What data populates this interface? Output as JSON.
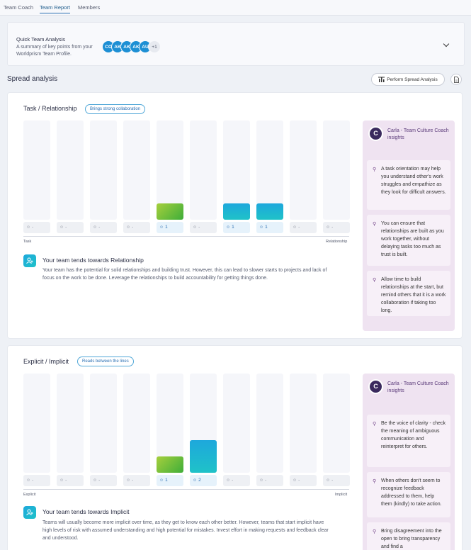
{
  "tabs": [
    {
      "label": "Team Coach"
    },
    {
      "label": "Team Report"
    },
    {
      "label": "Members"
    }
  ],
  "quick_analysis": {
    "title": "Quick Team Analysis",
    "subtitle": "A summary of key points from your Worldprism Team Profile.",
    "avatars": [
      "CO",
      "AK",
      "AK",
      "AK",
      "AU"
    ],
    "more": "+1"
  },
  "spread": {
    "title": "Spread analysis",
    "perform_label": "Perform Spread Analysis"
  },
  "sections": [
    {
      "title": "Task / Relationship",
      "badge": "Brings strong collaboration",
      "columns": [
        {
          "count": "-",
          "value": 0,
          "kind": "none"
        },
        {
          "count": "-",
          "value": 0,
          "kind": "none"
        },
        {
          "count": "-",
          "value": 0,
          "kind": "none"
        },
        {
          "count": "-",
          "value": 0,
          "kind": "none"
        },
        {
          "count": "1",
          "value": 1,
          "kind": "green"
        },
        {
          "count": "-",
          "value": 0,
          "kind": "none"
        },
        {
          "count": "1",
          "value": 1,
          "kind": "blue"
        },
        {
          "count": "1",
          "value": 1,
          "kind": "blue"
        },
        {
          "count": "-",
          "value": 0,
          "kind": "none"
        },
        {
          "count": "-",
          "value": 0,
          "kind": "none"
        }
      ],
      "left_label": "Task",
      "right_label": "Relationship",
      "tendency_title": "Your team tends towards Relationship",
      "tendency_text": "Your team has the potential for solid relationships and building trust. However, this can lead to slower starts to projects and lack of focus on the work to be done. Leverage the relationships to build accountability for getting things done.",
      "coach_name": "Carla - Team Culture Coach insights",
      "coach_initial": "C",
      "tips": [
        "A task orientation may help you understand other's work struggles and empathize as they look for difficult answers.",
        "You can ensure that relationships are built as you work together, without delaying tasks too much as trust is built.",
        "Allow time to build relationships at the start, but remind others that it is a work collaboration if taking too long."
      ]
    },
    {
      "title": "Explicit / Implicit",
      "badge": "Reads between the lines",
      "columns": [
        {
          "count": "-",
          "value": 0,
          "kind": "none"
        },
        {
          "count": "-",
          "value": 0,
          "kind": "none"
        },
        {
          "count": "-",
          "value": 0,
          "kind": "none"
        },
        {
          "count": "-",
          "value": 0,
          "kind": "none"
        },
        {
          "count": "1",
          "value": 1,
          "kind": "green"
        },
        {
          "count": "2",
          "value": 2,
          "kind": "blue"
        },
        {
          "count": "-",
          "value": 0,
          "kind": "none"
        },
        {
          "count": "-",
          "value": 0,
          "kind": "none"
        },
        {
          "count": "-",
          "value": 0,
          "kind": "none"
        },
        {
          "count": "-",
          "value": 0,
          "kind": "none"
        }
      ],
      "left_label": "Explicit",
      "right_label": "Implicit",
      "tendency_title": "Your team tends towards Implicit",
      "tendency_text": "Teams will usually become more implicit over time, as they get to know each other better. However, teams that start implicit have high levels of risk with assumed understanding and high potential for mistakes. Invest effort in making requests and feedback clear and understood.",
      "coach_name": "Carla - Team Culture Coach insights",
      "coach_initial": "C",
      "tips": [
        "Be the voice of clarity - check the meaning of ambiguous communication and reinterpret for others.",
        "When others don't seem to recognize feedback addressed to them, help them (kindly) to take action.",
        "Bring disagreement into the open to bring transparency and find a"
      ]
    }
  ]
}
